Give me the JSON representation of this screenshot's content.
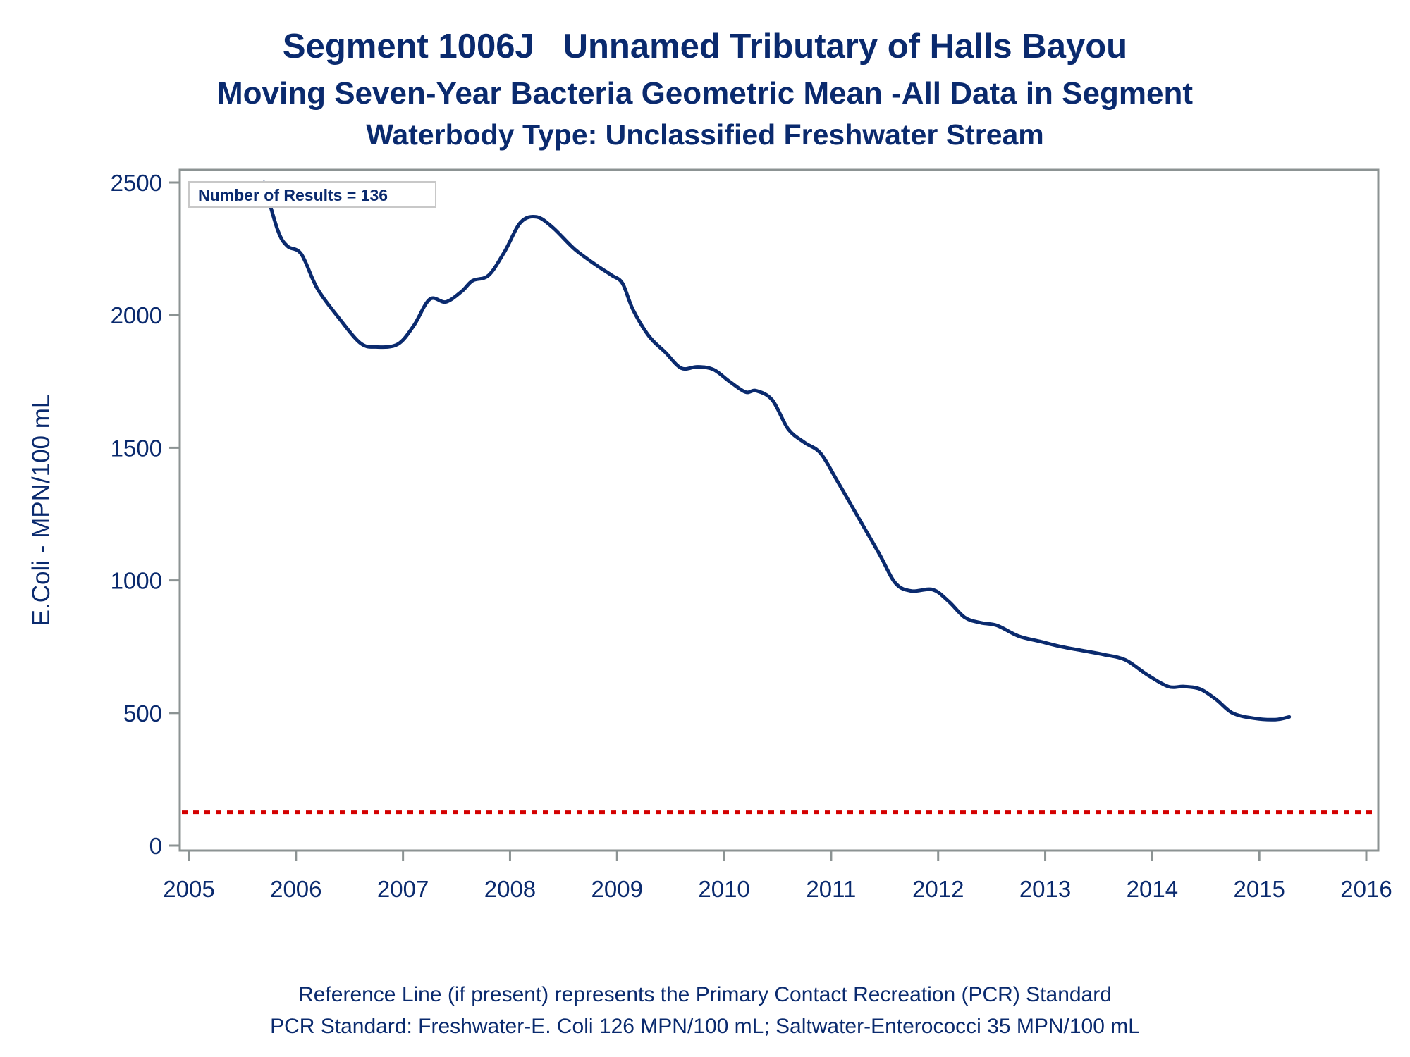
{
  "titles": {
    "line1": "Segment 1006J   Unnamed Tributary of Halls Bayou",
    "line2": "Moving Seven-Year Bacteria Geometric Mean -All Data in Segment",
    "line3": "Waterbody Type: Unclassified Freshwater Stream"
  },
  "footnotes": {
    "line1": "Reference Line (if present) represents the Primary Contact Recreation (PCR) Standard",
    "line2": "PCR Standard: Freshwater-E. Coli 126 MPN/100 mL; Saltwater-Enterococci 35 MPN/100 mL"
  },
  "annotation": "Number of Results = 136",
  "colors": {
    "series": "#0a2a6e",
    "reference": "#d40000",
    "frame": "#8c9393",
    "text": "#0a2a6e"
  },
  "chart_data": {
    "type": "line",
    "ylabel": "E.Coli - MPN/100 mL",
    "xlabel": "",
    "xlim": [
      2005,
      2016
    ],
    "ylim": [
      0,
      2500
    ],
    "xticks": [
      2005,
      2006,
      2007,
      2008,
      2009,
      2010,
      2011,
      2012,
      2013,
      2014,
      2015,
      2016
    ],
    "yticks": [
      0,
      500,
      1000,
      1500,
      2000,
      2500
    ],
    "reference_line": {
      "y": 126,
      "style": "dotted"
    },
    "series": [
      {
        "x": [
          2005.7,
          2005.83,
          2005.92,
          2006.05,
          2006.2,
          2006.4,
          2006.6,
          2006.75,
          2006.95,
          2007.1,
          2007.25,
          2007.4,
          2007.55,
          2007.65,
          2007.8,
          2007.95,
          2008.1,
          2008.25,
          2008.4,
          2008.6,
          2008.8,
          2008.95,
          2009.05,
          2009.15,
          2009.3,
          2009.45,
          2009.6,
          2009.75,
          2009.9,
          2010.05,
          2010.2,
          2010.3,
          2010.45,
          2010.6,
          2010.75,
          2010.9,
          2011.05,
          2011.25,
          2011.45,
          2011.6,
          2011.75,
          2011.95,
          2012.1,
          2012.25,
          2012.4,
          2012.55,
          2012.75,
          2012.95,
          2013.15,
          2013.35,
          2013.55,
          2013.75,
          2013.95,
          2014.15,
          2014.3,
          2014.45,
          2014.6,
          2014.75,
          2014.95,
          2015.15,
          2015.28
        ],
        "y": [
          2500,
          2320,
          2260,
          2230,
          2100,
          1990,
          1895,
          1880,
          1890,
          1960,
          2060,
          2050,
          2090,
          2130,
          2150,
          2240,
          2350,
          2370,
          2330,
          2250,
          2190,
          2150,
          2120,
          2020,
          1920,
          1860,
          1800,
          1805,
          1795,
          1750,
          1710,
          1715,
          1680,
          1570,
          1520,
          1480,
          1380,
          1240,
          1100,
          990,
          960,
          965,
          920,
          860,
          840,
          830,
          790,
          770,
          750,
          735,
          720,
          700,
          645,
          600,
          600,
          590,
          550,
          500,
          480,
          475,
          485
        ]
      }
    ]
  }
}
